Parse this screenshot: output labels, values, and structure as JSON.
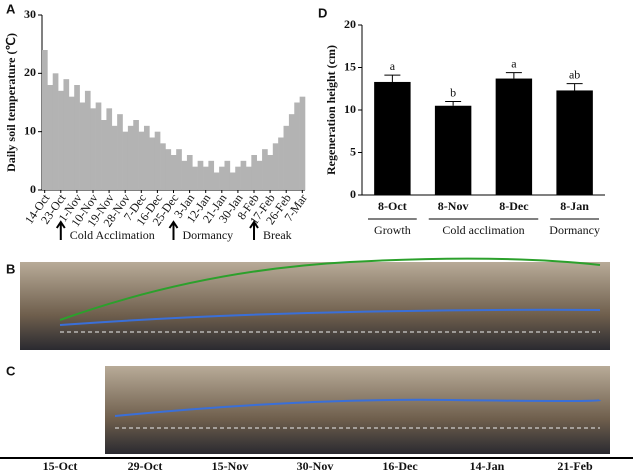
{
  "panel_labels": [
    "A",
    "B",
    "C",
    "D"
  ],
  "chart_data": [
    {
      "type": "area-bar",
      "ylabel": "Daily soil temperature (℃)",
      "categories": [
        "14-Oct",
        null,
        null,
        "23-Oct",
        null,
        null,
        "1-Nov",
        null,
        null,
        "10-Nov",
        null,
        null,
        "19-Nov",
        null,
        null,
        "28-Nov",
        null,
        null,
        "7-Dec",
        null,
        null,
        "16-Dec",
        null,
        null,
        "25-Dec",
        null,
        null,
        "3-Jan",
        null,
        null,
        "12-Jan",
        null,
        null,
        "21-Jan",
        null,
        null,
        "30-Jan",
        null,
        null,
        "8-Feb",
        null,
        null,
        "17-Feb",
        null,
        null,
        "26-Feb",
        null,
        null,
        "7-Mar"
      ],
      "values": [
        24,
        18,
        20,
        17,
        19,
        16,
        18,
        15,
        17,
        14,
        15,
        12,
        14,
        11,
        13,
        10,
        11,
        12,
        10,
        11,
        9,
        10,
        8,
        7,
        6,
        7,
        5,
        6,
        4,
        5,
        4,
        5,
        3,
        4,
        5,
        3,
        4,
        5,
        4,
        6,
        5,
        7,
        6,
        8,
        9,
        11,
        13,
        15,
        16
      ],
      "color": "#b3b3b3",
      "ylim": [
        0,
        30
      ],
      "yticks": [
        0,
        10,
        20,
        30
      ],
      "phases": [
        {
          "label": "Cold Acclimation",
          "at": 3
        },
        {
          "label": "Dormancy",
          "at": 24
        },
        {
          "label": "Break",
          "at": 39
        }
      ]
    },
    {
      "type": "bar",
      "ylabel": "Regeneration height (cm)",
      "categories": [
        "8-Oct",
        "8-Nov",
        "8-Dec",
        "8-Jan"
      ],
      "values": [
        13.3,
        10.5,
        13.7,
        12.3
      ],
      "errors": [
        0.8,
        0.5,
        0.7,
        0.8
      ],
      "letters": [
        "a",
        "b",
        "a",
        "ab"
      ],
      "color": "#000000",
      "ylim": [
        0,
        20
      ],
      "yticks": [
        0,
        5,
        10,
        15,
        20
      ],
      "groups": [
        {
          "label": "Growth",
          "from": 0,
          "to": 0
        },
        {
          "label": "Cold acclimation",
          "from": 1,
          "to": 2
        },
        {
          "label": "Dormancy",
          "from": 3,
          "to": 3
        }
      ]
    }
  ],
  "timeline": [
    "15-Oct",
    "29-Oct",
    "15-Nov",
    "30-Nov",
    "16-Dec",
    "14-Jan",
    "21-Feb"
  ]
}
